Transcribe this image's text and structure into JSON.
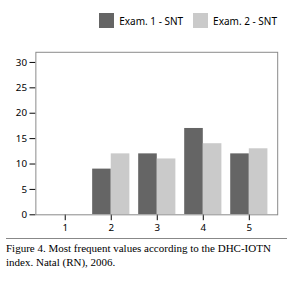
{
  "chart_data": {
    "type": "bar",
    "categories": [
      1,
      2,
      3,
      4,
      5
    ],
    "series": [
      {
        "name": "Exam. 1 - SNT",
        "color": "#656565",
        "values": [
          0,
          9,
          12,
          17,
          12
        ]
      },
      {
        "name": "Exam. 2 - SNT",
        "color": "#cacaca",
        "values": [
          0,
          12,
          11,
          14,
          13
        ]
      }
    ],
    "ylim": [
      0,
      32
    ],
    "yticks": [
      0,
      5,
      10,
      15,
      20,
      25,
      30
    ],
    "xticks": [
      1,
      2,
      3,
      4,
      5
    ],
    "grid": false,
    "legend": "upper right",
    "caption": "Figure 4. Most frequent values according to the DHC-IOTN index. Natal (RN), 2006."
  }
}
